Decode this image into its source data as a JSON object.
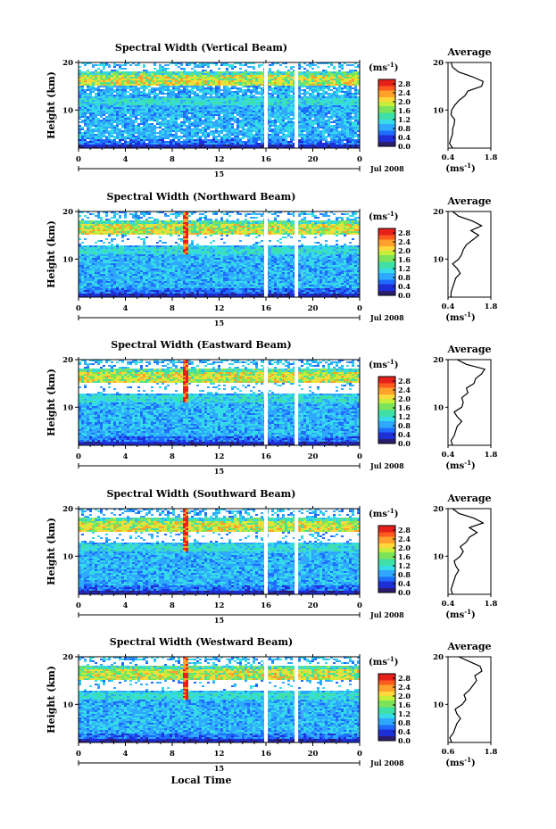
{
  "figure": {
    "xlabel": "Local Time",
    "date_label": "Jul 2008",
    "day_marker": "15",
    "unit": "(ms",
    "unit_exp": "-1",
    "unit_close": ")"
  },
  "chart_data": [
    {
      "type": "heatmap",
      "title": "Spectral Width (Vertical Beam)",
      "ylabel": "Height (km)",
      "x_ticks": [
        "0",
        "4",
        "8",
        "12",
        "16",
        "20",
        "0"
      ],
      "y_ticks": [
        "10",
        "20"
      ],
      "xlim": [
        0,
        24
      ],
      "ylim": [
        2,
        20
      ],
      "colorbar_ticks": [
        "0.0",
        "0.4",
        "0.8",
        "1.2",
        "1.6",
        "2.0",
        "2.4",
        "2.8"
      ],
      "colorbar_range": [
        0.0,
        3.0
      ],
      "avg_title": "Average",
      "avg_ticks": [
        "0.4",
        "1.8"
      ],
      "avg_xlim": [
        0.4,
        1.8
      ],
      "avg_profile": {
        "height_km": [
          2,
          3,
          4,
          5,
          6,
          7,
          8,
          9,
          10,
          11,
          12,
          13,
          14,
          15,
          16,
          17,
          18,
          19,
          20
        ],
        "width_ms": [
          0.55,
          0.45,
          0.5,
          0.55,
          0.55,
          0.6,
          0.62,
          0.5,
          0.52,
          0.62,
          0.75,
          0.95,
          1.05,
          1.5,
          1.55,
          1.2,
          0.75,
          0.55,
          0.5
        ]
      }
    },
    {
      "type": "heatmap",
      "title": "Spectral Width (Northward Beam)",
      "ylabel": "Height (km)",
      "x_ticks": [
        "0",
        "4",
        "8",
        "12",
        "16",
        "20",
        "0"
      ],
      "y_ticks": [
        "10",
        "20"
      ],
      "xlim": [
        0,
        24
      ],
      "ylim": [
        2,
        20
      ],
      "colorbar_ticks": [
        "0.0",
        "0.4",
        "0.8",
        "1.2",
        "1.6",
        "2.0",
        "2.4",
        "2.8"
      ],
      "colorbar_range": [
        0.0,
        3.0
      ],
      "avg_title": "Average",
      "avg_ticks": [
        "0.4",
        "1.8"
      ],
      "avg_xlim": [
        0.4,
        1.8
      ],
      "avg_profile": {
        "height_km": [
          2,
          3,
          4,
          5,
          6,
          7,
          8,
          9,
          10,
          11,
          12,
          13,
          14,
          15,
          16,
          17,
          18,
          19,
          20
        ],
        "width_ms": [
          0.5,
          0.5,
          0.55,
          0.6,
          0.65,
          0.8,
          0.7,
          0.55,
          0.75,
          0.85,
          0.9,
          1.0,
          1.2,
          1.4,
          1.15,
          1.5,
          1.2,
          0.75,
          0.55
        ]
      }
    },
    {
      "type": "heatmap",
      "title": "Spectral Width (Eastward Beam)",
      "ylabel": "Height (km)",
      "x_ticks": [
        "0",
        "4",
        "8",
        "12",
        "16",
        "20",
        "0"
      ],
      "y_ticks": [
        "10",
        "20"
      ],
      "xlim": [
        0,
        24
      ],
      "ylim": [
        2,
        20
      ],
      "colorbar_ticks": [
        "0.0",
        "0.4",
        "0.8",
        "1.2",
        "1.6",
        "2.0",
        "2.4",
        "2.8"
      ],
      "colorbar_range": [
        0.0,
        3.0
      ],
      "avg_title": "Average",
      "avg_ticks": [
        "0.4",
        "1.8"
      ],
      "avg_xlim": [
        0.4,
        1.8
      ],
      "avg_profile": {
        "height_km": [
          2,
          3,
          4,
          5,
          6,
          7,
          8,
          9,
          10,
          11,
          12,
          13,
          14,
          15,
          16,
          17,
          18,
          19,
          20
        ],
        "width_ms": [
          0.55,
          0.5,
          0.6,
          0.65,
          0.7,
          0.85,
          0.7,
          0.6,
          0.85,
          0.9,
          0.85,
          1.05,
          1.0,
          1.25,
          1.3,
          1.5,
          1.6,
          1.0,
          0.7
        ]
      }
    },
    {
      "type": "heatmap",
      "title": "Spectral Width (Southward Beam)",
      "ylabel": "Height (km)",
      "x_ticks": [
        "0",
        "4",
        "8",
        "12",
        "16",
        "20",
        "0"
      ],
      "y_ticks": [
        "10",
        "20"
      ],
      "xlim": [
        0,
        24
      ],
      "ylim": [
        2,
        20
      ],
      "colorbar_ticks": [
        "0.0",
        "0.4",
        "0.8",
        "1.2",
        "1.6",
        "2.0",
        "2.4",
        "2.8"
      ],
      "colorbar_range": [
        0.0,
        3.0
      ],
      "avg_title": "Average",
      "avg_ticks": [
        "0.4",
        "1.8"
      ],
      "avg_xlim": [
        0.4,
        1.8
      ],
      "avg_profile": {
        "height_km": [
          2,
          3,
          4,
          5,
          6,
          7,
          8,
          9,
          10,
          11,
          12,
          13,
          14,
          15,
          16,
          17,
          18,
          19,
          20
        ],
        "width_ms": [
          0.55,
          0.5,
          0.55,
          0.6,
          0.65,
          0.75,
          0.65,
          0.6,
          0.8,
          0.9,
          0.8,
          1.0,
          1.1,
          1.35,
          1.1,
          1.55,
          1.25,
          0.75,
          0.55
        ]
      }
    },
    {
      "type": "heatmap",
      "title": "Spectral Width (Westward Beam)",
      "ylabel": "Height (km)",
      "x_ticks": [
        "0",
        "4",
        "8",
        "12",
        "16",
        "20",
        "0"
      ],
      "y_ticks": [
        "10",
        "20"
      ],
      "xlim": [
        0,
        24
      ],
      "ylim": [
        2,
        20
      ],
      "colorbar_ticks": [
        "0.0",
        "0.4",
        "0.8",
        "1.2",
        "1.6",
        "2.0",
        "2.4",
        "2.8"
      ],
      "colorbar_range": [
        0.0,
        3.0
      ],
      "avg_title": "Average",
      "avg_ticks": [
        "0.6",
        "1.8"
      ],
      "avg_xlim": [
        0.6,
        1.8
      ],
      "avg_profile": {
        "height_km": [
          2,
          3,
          4,
          5,
          6,
          7,
          8,
          9,
          10,
          11,
          12,
          13,
          14,
          15,
          16,
          17,
          18,
          19,
          20
        ],
        "width_ms": [
          0.7,
          0.65,
          0.75,
          0.8,
          0.85,
          0.95,
          0.85,
          0.8,
          1.0,
          1.1,
          1.05,
          1.2,
          1.3,
          1.4,
          1.35,
          1.55,
          1.5,
          1.2,
          0.9
        ]
      }
    }
  ],
  "colors": {
    "palette": [
      "#2b1d6e",
      "#1e2fd8",
      "#1f6bff",
      "#2fa8ff",
      "#35dbe6",
      "#3ee0a8",
      "#7de35a",
      "#c7ee3a",
      "#ffd83a",
      "#ffa12a",
      "#ff5a1f",
      "#e8201a"
    ],
    "gap": "#ffffff",
    "axis": "#000000"
  }
}
